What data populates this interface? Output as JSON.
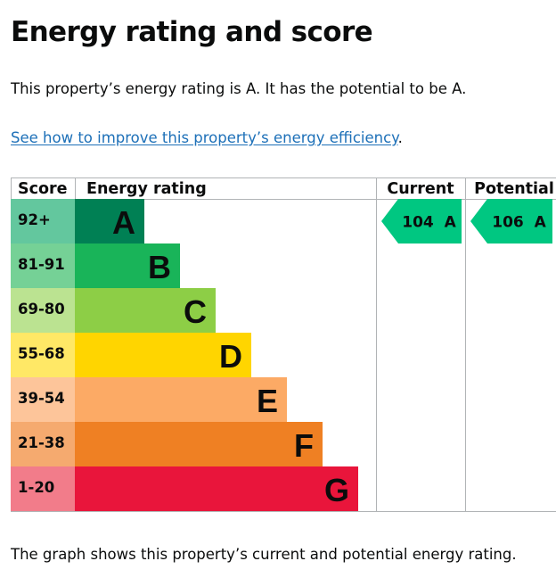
{
  "page": {
    "title": "Energy rating and score",
    "summary": "This property’s energy rating is A. It has the potential to be A.",
    "link_text": "See how to improve this property’s energy efficiency",
    "link_suffix": ".",
    "caption": "The graph shows this property’s current and potential energy rating."
  },
  "chart_data": {
    "type": "bar",
    "columns": [
      "Score",
      "Energy rating",
      "Current",
      "Potential"
    ],
    "bands": [
      {
        "letter": "A",
        "score_range": "92+",
        "color": "#008054",
        "score_color": "#63c79e"
      },
      {
        "letter": "B",
        "score_range": "81-91",
        "color": "#19b459",
        "score_color": "#75d196"
      },
      {
        "letter": "C",
        "score_range": "69-80",
        "color": "#8dce46",
        "score_color": "#bbe391"
      },
      {
        "letter": "D",
        "score_range": "55-68",
        "color": "#ffd500",
        "score_color": "#ffe866"
      },
      {
        "letter": "E",
        "score_range": "39-54",
        "color": "#fcaa65",
        "score_color": "#fdc59a"
      },
      {
        "letter": "F",
        "score_range": "21-38",
        "color": "#ef8023",
        "score_color": "#f5aa6f"
      },
      {
        "letter": "G",
        "score_range": "1-20",
        "color": "#e9153b",
        "score_color": "#f27c8a"
      }
    ],
    "current": {
      "score": 104,
      "band": "A",
      "label": "104  A"
    },
    "potential": {
      "score": 106,
      "band": "A",
      "label": "106  A"
    },
    "arrow_color": "#00c781"
  }
}
